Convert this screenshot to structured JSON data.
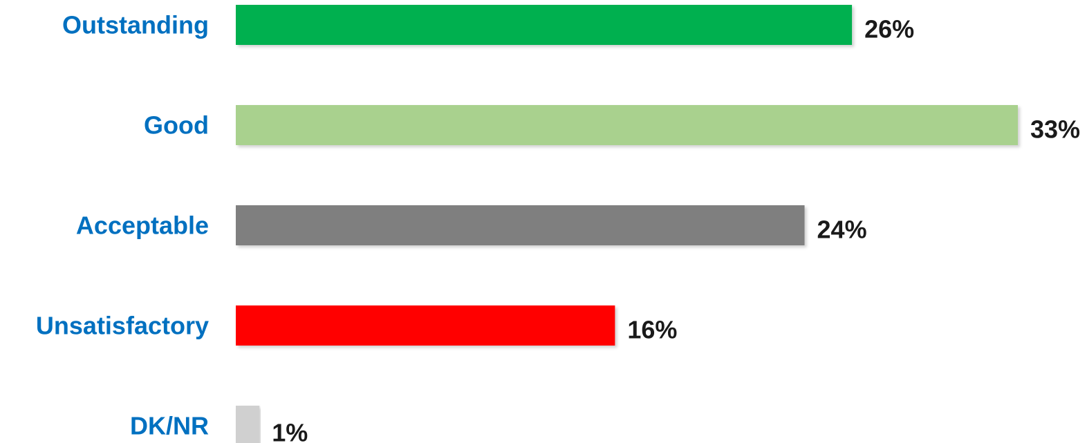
{
  "chart_data": {
    "type": "bar",
    "orientation": "horizontal",
    "categories": [
      "Outstanding",
      "Good",
      "Acceptable",
      "Unsatisfactory",
      "DK/NR"
    ],
    "values": [
      26,
      33,
      24,
      16,
      1
    ],
    "value_labels": [
      "26%",
      "33%",
      "24%",
      "16%",
      "1%"
    ],
    "bar_colors": [
      "#00b050",
      "#a9d18e",
      "#7f7f7f",
      "#ff0000",
      "#d0d0d0"
    ],
    "label_color": "#0070c0",
    "value_label_color": "#1a1a1a",
    "title": "",
    "xlabel": "",
    "ylabel": "",
    "xlim": [
      0,
      33
    ],
    "grid": false,
    "legend": "none"
  }
}
